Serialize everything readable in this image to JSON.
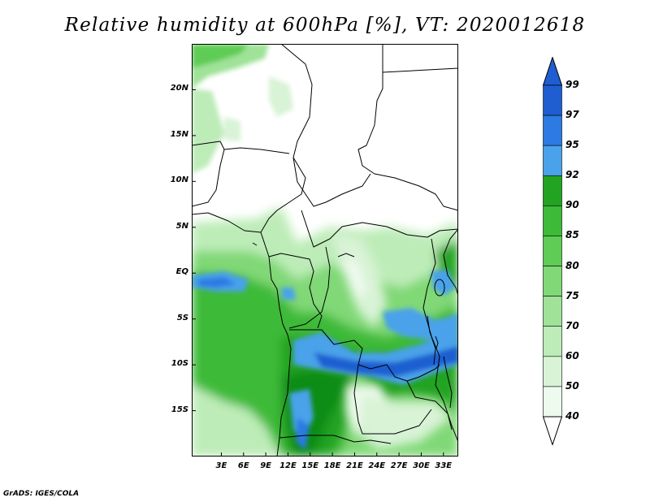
{
  "title": "Relative humidity at 600hPa [%], VT: 2020012618",
  "credit": "GrADS: IGES/COLA",
  "map": {
    "lon_range": [
      -1,
      35
    ],
    "lat_range": [
      -20,
      25
    ],
    "lat_ticks": [
      {
        "value": 20,
        "label": "20N"
      },
      {
        "value": 15,
        "label": "15N"
      },
      {
        "value": 10,
        "label": "10N"
      },
      {
        "value": 5,
        "label": "5N"
      },
      {
        "value": 0,
        "label": "EQ"
      },
      {
        "value": -5,
        "label": "5S"
      },
      {
        "value": -10,
        "label": "10S"
      },
      {
        "value": -15,
        "label": "15S"
      }
    ],
    "lon_ticks": [
      {
        "value": 3,
        "label": "3E"
      },
      {
        "value": 6,
        "label": "6E"
      },
      {
        "value": 9,
        "label": "9E"
      },
      {
        "value": 12,
        "label": "12E"
      },
      {
        "value": 15,
        "label": "15E"
      },
      {
        "value": 18,
        "label": "18E"
      },
      {
        "value": 21,
        "label": "21E"
      },
      {
        "value": 24,
        "label": "24E"
      },
      {
        "value": 27,
        "label": "27E"
      },
      {
        "value": 30,
        "label": "30E"
      },
      {
        "value": 33,
        "label": "33E"
      }
    ]
  },
  "colorbar": {
    "levels": [
      {
        "label": "40",
        "color": "#eefaee"
      },
      {
        "label": "50",
        "color": "#d8f3d6"
      },
      {
        "label": "60",
        "color": "#bdecb8"
      },
      {
        "label": "70",
        "color": "#9fe298"
      },
      {
        "label": "75",
        "color": "#80d876"
      },
      {
        "label": "80",
        "color": "#5fcc55"
      },
      {
        "label": "85",
        "color": "#3dba38"
      },
      {
        "label": "90",
        "color": "#22a322"
      },
      {
        "label": "92",
        "color": "#118c14"
      },
      {
        "label": "95",
        "color": "#4aa2ea"
      },
      {
        "label": "97",
        "color": "#2c7ae2"
      },
      {
        "label": "99",
        "color": "#1f5ed1"
      }
    ],
    "over_color": "#1f5ed1",
    "under_color": "#ffffff"
  }
}
